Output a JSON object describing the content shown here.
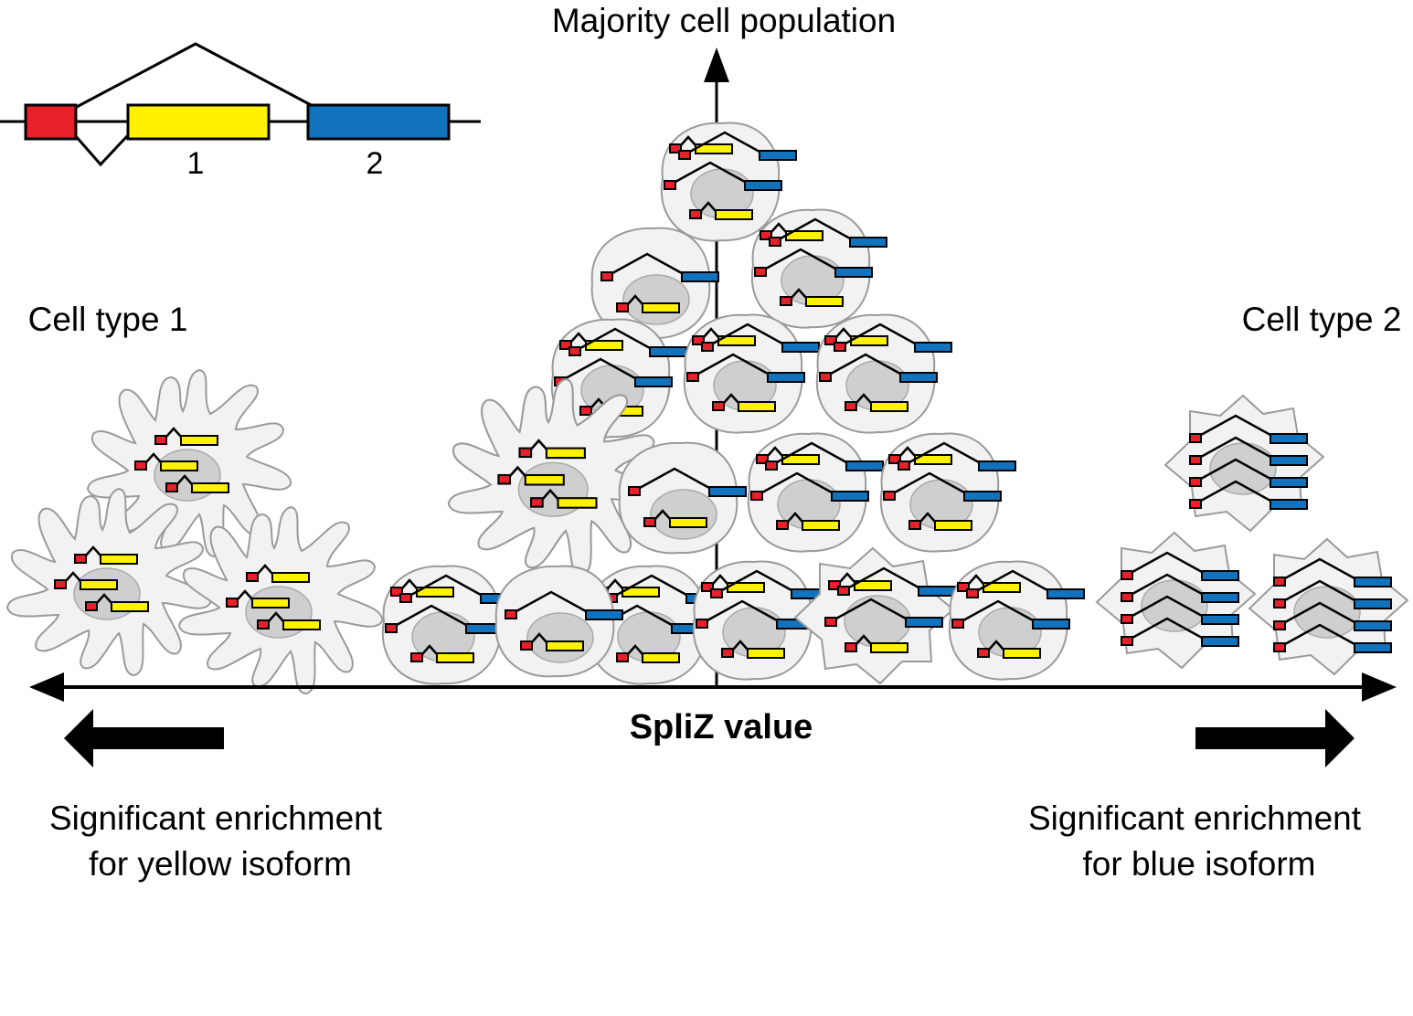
{
  "gene_model": {
    "exon_1_label": "1",
    "exon_2_label": "2",
    "colors": {
      "constitutive_exon": "#e8202a",
      "exon_1": "#fff200",
      "exon_2": "#1172be"
    }
  },
  "labels": {
    "y_axis": "Majority cell population",
    "cell_type_1": "Cell type 1",
    "cell_type_2": "Cell type 2",
    "x_axis": "SpliZ value",
    "left_enrichment_line1": "Significant enrichment",
    "left_enrichment_line2": "for yellow isoform",
    "right_enrichment_line1": "Significant enrichment",
    "right_enrichment_line2": "for blue isoform"
  },
  "colors": {
    "cell_fill": "#f2f2f2",
    "cell_outline": "#9a9a9a",
    "nucleus": "#cfcfcf",
    "ink": "#000000"
  }
}
